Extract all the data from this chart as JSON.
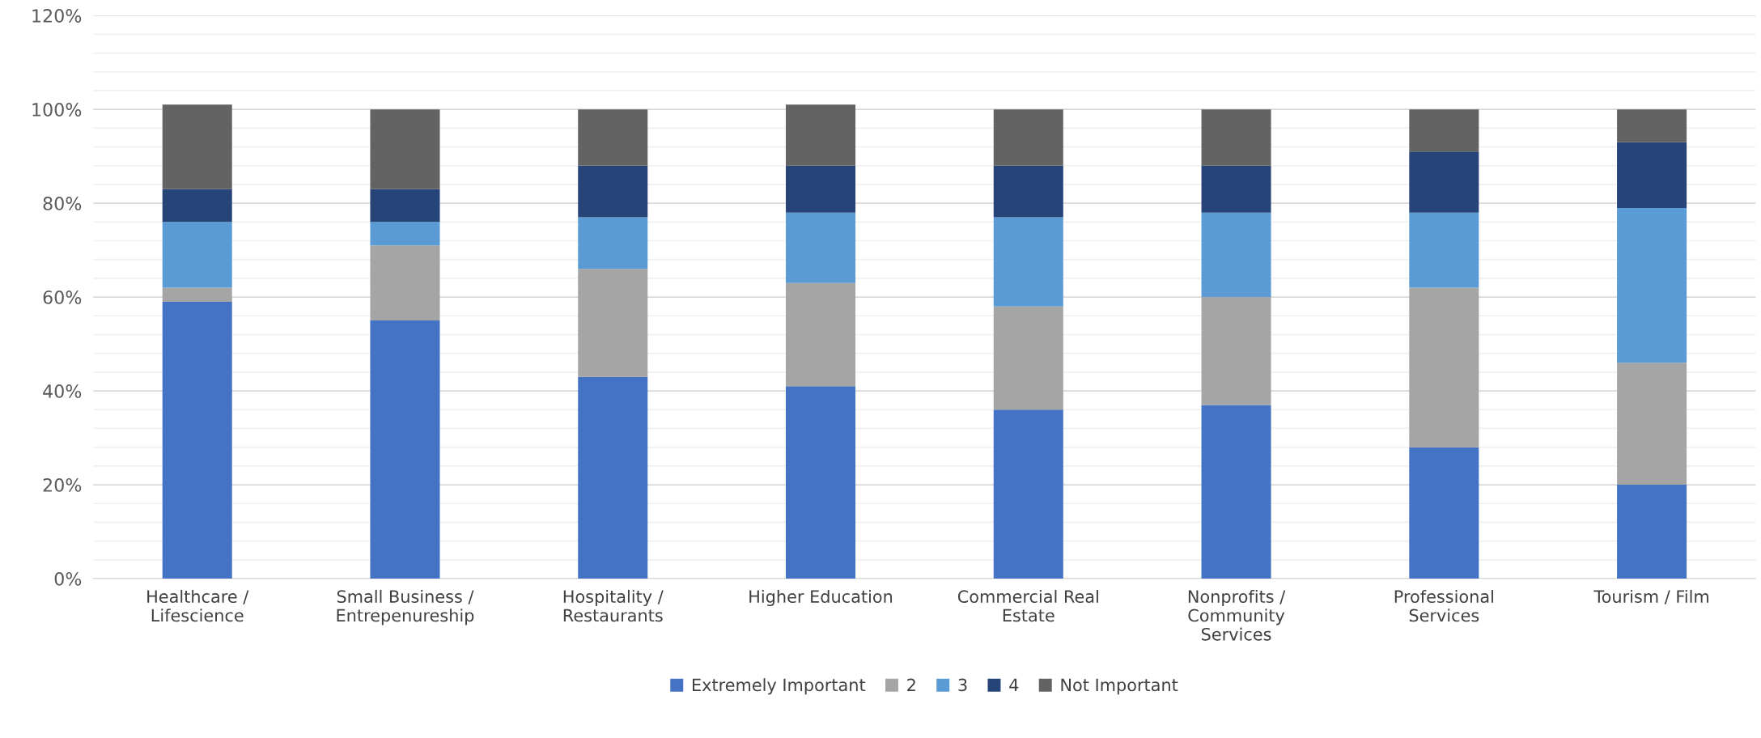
{
  "chart_data": {
    "type": "bar",
    "stacked": true,
    "categories": [
      "Healthcare /\nLifescience",
      "Small Business /\nEntrepenureship",
      "Hospitality /\nRestaurants",
      "Higher Education",
      "Commercial Real\nEstate",
      "Nonprofits /\nCommunity\nServices",
      "Professional\nServices",
      "Tourism / Film"
    ],
    "series": [
      {
        "name": "Extremely Important",
        "color": "#4472c4",
        "values": [
          59,
          55,
          43,
          41,
          36,
          37,
          28,
          20
        ]
      },
      {
        "name": "2",
        "color": "#a5a5a5",
        "values": [
          3,
          16,
          23,
          22,
          22,
          23,
          34,
          26
        ]
      },
      {
        "name": "3",
        "color": "#5b9bd5",
        "values": [
          14,
          5,
          11,
          15,
          19,
          18,
          16,
          33
        ]
      },
      {
        "name": "4",
        "color": "#264478",
        "values": [
          7,
          7,
          11,
          10,
          11,
          10,
          13,
          14
        ]
      },
      {
        "name": "Not Important",
        "color": "#636363",
        "values": [
          18,
          17,
          12,
          13,
          12,
          12,
          9,
          7
        ]
      }
    ],
    "ylim": [
      0,
      120
    ],
    "yticks": [
      {
        "value": 0,
        "label": "0%"
      },
      {
        "value": 20,
        "label": "20%"
      },
      {
        "value": 40,
        "label": "40%"
      },
      {
        "value": 60,
        "label": "60%"
      },
      {
        "value": 80,
        "label": "80%"
      },
      {
        "value": 100,
        "label": "100%"
      },
      {
        "value": 120,
        "label": "120%"
      }
    ],
    "grid": "y",
    "legend": "bottom"
  }
}
